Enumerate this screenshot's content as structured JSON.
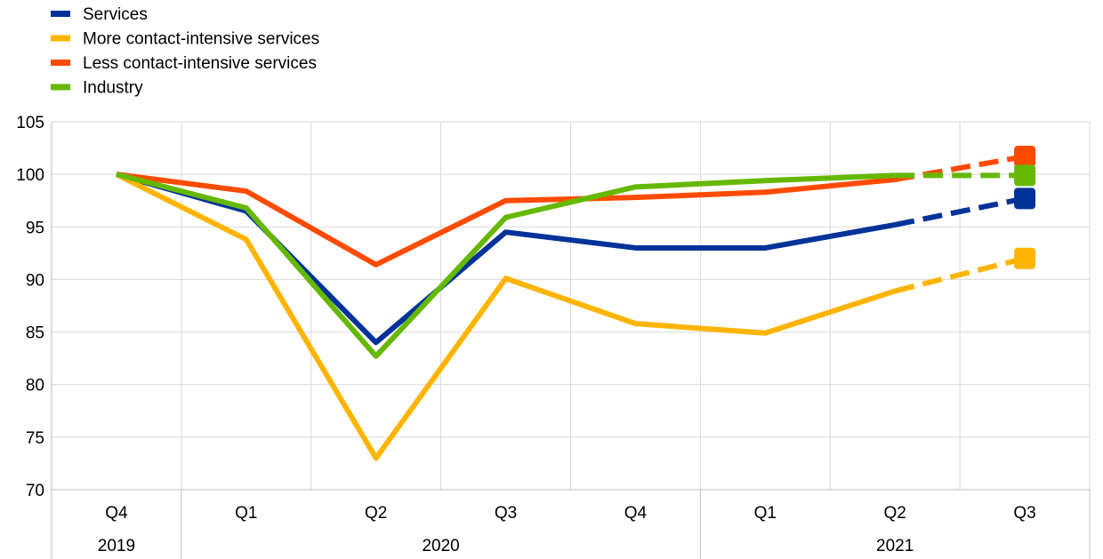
{
  "chart_data": {
    "type": "line",
    "title": "",
    "xlabel": "",
    "ylabel": "",
    "ylim": [
      70,
      105
    ],
    "yticks": [
      70,
      75,
      80,
      85,
      90,
      95,
      100,
      105
    ],
    "grid": true,
    "legend_position": "top-left",
    "categories": [
      "Q4",
      "Q1",
      "Q2",
      "Q3",
      "Q4",
      "Q1",
      "Q2",
      "Q3"
    ],
    "year_groups": [
      {
        "label": "2019",
        "span": 1
      },
      {
        "label": "2020",
        "span": 4
      },
      {
        "label": "2021",
        "span": 3
      }
    ],
    "dashed_from_index": 6,
    "series": [
      {
        "name": "Services",
        "color": "#003299",
        "values": [
          100,
          96.5,
          84.0,
          94.5,
          93.0,
          93.0,
          95.2,
          97.7
        ]
      },
      {
        "name": "More contact-intensive services",
        "color": "#FFB400",
        "values": [
          100,
          93.8,
          73.0,
          90.1,
          85.8,
          84.9,
          88.9,
          92.0
        ]
      },
      {
        "name": "Less contact-intensive services",
        "color": "#FF4B00",
        "values": [
          100,
          98.4,
          91.4,
          97.5,
          97.8,
          98.3,
          99.5,
          101.7
        ]
      },
      {
        "name": "Industry",
        "color": "#65B800",
        "values": [
          100,
          96.8,
          82.7,
          95.9,
          98.8,
          99.4,
          99.9,
          99.9
        ]
      }
    ]
  }
}
